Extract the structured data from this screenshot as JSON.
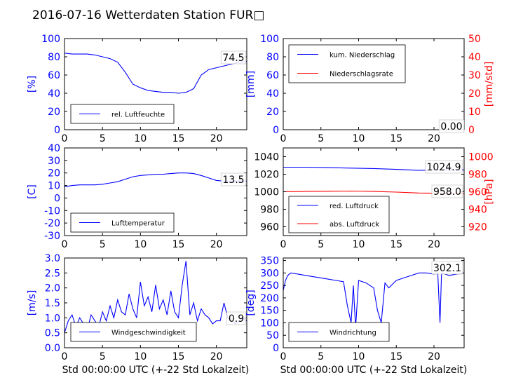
{
  "title": "2016-07-16 Wetterdaten Station FUR□",
  "colors": {
    "left_axis": "#0000ff",
    "right_axis": "#ff0000",
    "series_blue": "#0000ff",
    "series_red": "#ff0000",
    "series_light": "#8080ff"
  },
  "chart_data": [
    {
      "type": "line",
      "ylabel": "[%]",
      "xlim": [
        0,
        24
      ],
      "ylim": [
        0,
        100
      ],
      "xticks": [
        0,
        5,
        10,
        15,
        20
      ],
      "yticks": [
        0,
        20,
        40,
        60,
        80,
        100
      ],
      "grid": false,
      "legend": "lower-left",
      "annotation": "74.5",
      "series": [
        {
          "name": "rel. Luftfeuchte",
          "color": "#0000ff",
          "x": [
            0,
            1,
            2,
            3,
            4,
            5,
            6,
            7,
            8,
            9,
            10,
            11,
            12,
            13,
            14,
            15,
            16,
            17,
            18,
            19,
            20,
            21,
            22,
            23,
            24
          ],
          "y": [
            84,
            83,
            83,
            83,
            82,
            80,
            78,
            74,
            63,
            50,
            46,
            43,
            42,
            41,
            41,
            40,
            41,
            45,
            60,
            66,
            68,
            70,
            72,
            74,
            75
          ]
        }
      ]
    },
    {
      "type": "line",
      "ylabel": "[mm]",
      "ylabel_right": "[mm/std]",
      "xlim": [
        0,
        24
      ],
      "ylim": [
        0,
        100
      ],
      "ylim_right": [
        0,
        50
      ],
      "xticks": [
        0,
        5,
        10,
        15,
        20
      ],
      "yticks": [
        0,
        20,
        40,
        60,
        80,
        100
      ],
      "yticks_right": [
        0,
        10,
        20,
        30,
        40,
        50
      ],
      "grid": false,
      "legend": "upper-left",
      "annotation": "0.00",
      "series": [
        {
          "name": "kum. Niederschlag",
          "color": "#0000ff",
          "x": [
            0,
            24
          ],
          "y": [
            0,
            0
          ]
        },
        {
          "name": "Niederschlagsrate",
          "color": "#ff0000",
          "axis": "right",
          "x": [
            0,
            24
          ],
          "y": [
            0,
            0
          ]
        }
      ]
    },
    {
      "type": "line",
      "ylabel": "[C]",
      "xlim": [
        0,
        24
      ],
      "ylim": [
        -30,
        40
      ],
      "xticks": [
        0,
        5,
        10,
        15,
        20
      ],
      "yticks": [
        -30,
        -20,
        -10,
        0,
        10,
        20,
        30,
        40
      ],
      "grid": false,
      "legend": "lower-left",
      "annotation": "13.5",
      "series": [
        {
          "name": "Lufttemperatur",
          "color": "#0000ff",
          "x": [
            0,
            1,
            2,
            3,
            4,
            5,
            6,
            7,
            8,
            9,
            10,
            11,
            12,
            13,
            14,
            15,
            16,
            17,
            18,
            19,
            20,
            21,
            22,
            23,
            24
          ],
          "y": [
            9,
            10,
            10.5,
            10.5,
            10.5,
            11,
            12,
            13,
            15,
            17,
            18,
            18.5,
            19,
            19,
            19.5,
            20,
            20,
            19.5,
            18,
            16,
            14,
            13.5,
            13.5,
            13.5,
            13.5
          ]
        }
      ]
    },
    {
      "type": "line",
      "ylabel_right": "[hPa]",
      "xlim": [
        0,
        24
      ],
      "ylim": [
        950,
        1050
      ],
      "ylim_right": [
        910,
        1010
      ],
      "xticks": [
        0,
        5,
        10,
        15,
        20
      ],
      "yticks": [
        960,
        980,
        1000,
        1020,
        1040
      ],
      "yticks_right": [
        920,
        940,
        960,
        980,
        1000
      ],
      "grid": false,
      "legend": "lower-left",
      "annotations": [
        "1024.9",
        "958.0"
      ],
      "series": [
        {
          "name": "red. Luftdruck",
          "color": "#0000ff",
          "x": [
            0,
            3,
            6,
            9,
            12,
            15,
            18,
            21,
            24
          ],
          "y": [
            1028,
            1028,
            1027.5,
            1027,
            1026.5,
            1025.5,
            1024.5,
            1025,
            1025
          ]
        },
        {
          "name": "abs. Luftdruck",
          "color": "#ff0000",
          "axis": "right",
          "x": [
            0,
            3,
            6,
            9,
            12,
            15,
            18,
            21,
            24
          ],
          "y": [
            960,
            960.3,
            960.6,
            960.8,
            960.3,
            959.6,
            958.6,
            958.2,
            958.0
          ]
        }
      ]
    },
    {
      "type": "line",
      "ylabel": "[m/s]",
      "xlabel": "Std 00:00:00 UTC (+-22 Std Lokalzeit)",
      "xlim": [
        0,
        24
      ],
      "ylim": [
        0,
        3
      ],
      "xticks": [
        0,
        5,
        10,
        15,
        20
      ],
      "yticks": [
        0.0,
        0.5,
        1.0,
        1.5,
        2.0,
        2.5,
        3.0
      ],
      "grid": false,
      "legend": "lower-center",
      "annotation": "0.9",
      "series": [
        {
          "name": "Windgeschwindigkeit",
          "color": "#0000ff",
          "x": [
            0,
            0.5,
            1,
            1.5,
            2,
            2.5,
            3,
            3.5,
            4,
            4.5,
            5,
            5.5,
            6,
            6.5,
            7,
            7.5,
            8,
            8.5,
            9,
            9.5,
            10,
            10.5,
            11,
            11.5,
            12,
            12.5,
            13,
            13.5,
            14,
            14.5,
            15,
            15.5,
            16,
            16.5,
            17,
            17.5,
            18,
            18.5,
            19,
            19.5,
            20,
            20.5,
            21,
            21.5,
            22,
            22.5,
            23,
            23.5,
            24
          ],
          "y": [
            0.5,
            0.9,
            1.1,
            0.7,
            1.0,
            0.8,
            0.6,
            1.1,
            0.9,
            0.7,
            1.2,
            0.9,
            1.4,
            1.0,
            1.6,
            1.2,
            1.1,
            1.8,
            1.3,
            1.0,
            2.2,
            1.4,
            1.7,
            1.2,
            2.1,
            1.3,
            1.6,
            1.1,
            1.9,
            1.2,
            1.0,
            2.1,
            2.9,
            1.1,
            1.5,
            0.9,
            1.3,
            1.1,
            1.0,
            0.8,
            0.9,
            0.9,
            1.5,
            1.0,
            0.9,
            0.8,
            0.9,
            1.0,
            0.9
          ]
        }
      ]
    },
    {
      "type": "line",
      "ylabel": "[deg]",
      "xlabel": "Std 00:00:00 UTC (+-22 Std Lokalzeit)",
      "xlim": [
        0,
        24
      ],
      "ylim": [
        0,
        360
      ],
      "xticks": [
        0,
        5,
        10,
        15,
        20
      ],
      "yticks": [
        0,
        50,
        100,
        150,
        200,
        250,
        300,
        350
      ],
      "grid": false,
      "legend": "lower-left",
      "annotation": "302.1",
      "series": [
        {
          "name": "Windrichtung",
          "color": "#0000ff",
          "x": [
            0,
            0.3,
            0.6,
            1,
            2,
            3,
            4,
            5,
            6,
            7,
            8,
            8.5,
            9,
            9.3,
            9.6,
            10,
            11,
            12,
            12.5,
            13,
            13.5,
            14,
            15,
            16,
            17,
            18,
            19,
            20,
            20.5,
            20.8,
            21,
            22,
            23,
            24
          ],
          "y": [
            230,
            270,
            290,
            300,
            295,
            290,
            285,
            280,
            275,
            270,
            265,
            170,
            100,
            250,
            80,
            270,
            260,
            240,
            150,
            100,
            260,
            240,
            270,
            280,
            290,
            300,
            300,
            295,
            300,
            100,
            300,
            290,
            295,
            300
          ]
        }
      ]
    }
  ]
}
